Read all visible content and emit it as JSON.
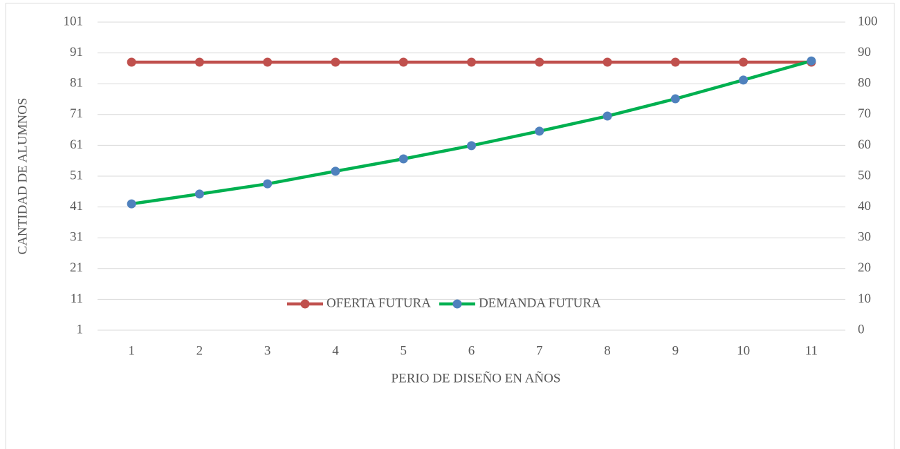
{
  "chart_data": {
    "type": "line",
    "x_label": "PERIO DE DISEÑO EN AÑOS",
    "y_label": "CANTIDAD DE ALUMNOS",
    "categories": [
      "1",
      "2",
      "3",
      "4",
      "5",
      "6",
      "7",
      "8",
      "9",
      "10",
      "11"
    ],
    "series": [
      {
        "name": "OFERTA FUTURA",
        "color": "#c0504d",
        "marker_color": "#c0504d",
        "values": [
          88,
          88,
          88,
          88,
          88,
          88,
          88,
          88,
          88,
          88,
          88
        ]
      },
      {
        "name": "DEMANDA FUTURA",
        "color": "#00b050",
        "marker_color": "#4f81bd",
        "values": [
          42,
          45.2,
          48.5,
          52.6,
          56.6,
          60.9,
          65.6,
          70.5,
          76.1,
          82.2,
          88.4
        ]
      }
    ],
    "ylim": [
      1,
      101
    ],
    "yticks": [
      1,
      11,
      21,
      31,
      41,
      51,
      61,
      71,
      81,
      91,
      101
    ],
    "y2lim": [
      0,
      100
    ],
    "y2ticks": [
      0,
      10,
      20,
      30,
      40,
      50,
      60,
      70,
      80,
      90,
      100
    ],
    "grid": true,
    "legend": "center"
  }
}
